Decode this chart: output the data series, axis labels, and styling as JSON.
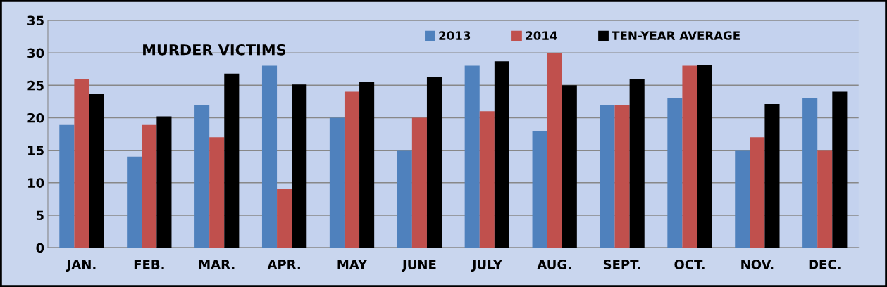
{
  "chart_data": {
    "type": "bar",
    "title": "MURDER VICTIMS",
    "categories": [
      "JAN.",
      "FEB.",
      "MAR.",
      "APR.",
      "MAY",
      "JUNE",
      "JULY",
      "AUG.",
      "SEPT.",
      "OCT.",
      "NOV.",
      "DEC."
    ],
    "series": [
      {
        "name": "2013",
        "color": "#4f81bd",
        "values": [
          19,
          14,
          22,
          28,
          20,
          15,
          28,
          18,
          22,
          23,
          15,
          23
        ]
      },
      {
        "name": "2014",
        "color": "#c0504d",
        "values": [
          26,
          19,
          17,
          9,
          24,
          20,
          21,
          30,
          22,
          28,
          17,
          15
        ]
      },
      {
        "name": "TEN-YEAR AVERAGE",
        "color": "#000000",
        "values": [
          23.7,
          20.2,
          26.8,
          25.1,
          25.5,
          26.3,
          28.7,
          25.0,
          26.0,
          28.1,
          22.1,
          24.0
        ]
      }
    ],
    "ylim": [
      0,
      35
    ],
    "yticks": [
      0,
      5,
      10,
      15,
      20,
      25,
      30,
      35
    ],
    "grid": "y",
    "legend": "top"
  }
}
